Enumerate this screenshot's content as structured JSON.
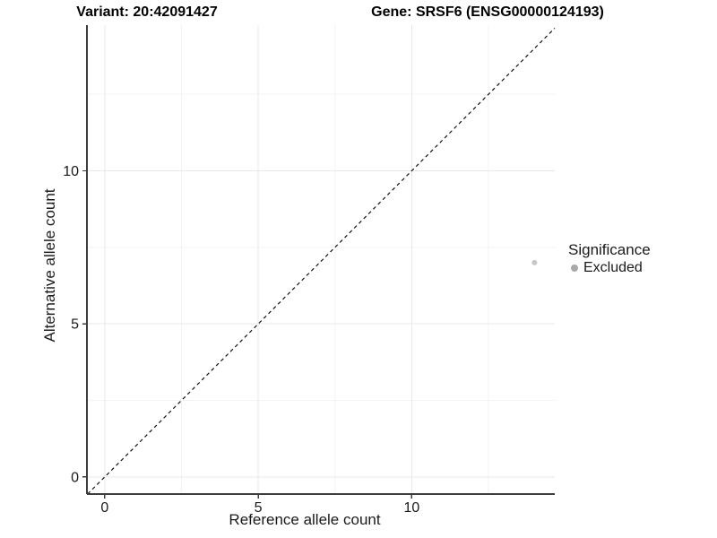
{
  "titles": {
    "variant": "Variant: 20:42091427",
    "gene": "Gene: SRSF6 (ENSG00000124193)"
  },
  "chart_data": {
    "type": "scatter",
    "xlabel": "Reference allele count",
    "ylabel": "Alternative allele count",
    "xlim": [
      -0.58,
      14.66
    ],
    "ylim": [
      -0.56,
      14.76
    ],
    "x_major_ticks": [
      0,
      5,
      10
    ],
    "y_major_ticks": [
      0,
      5,
      10
    ],
    "x_minor_ticks": [
      2.5,
      7.5,
      12.5
    ],
    "y_minor_ticks": [
      2.5,
      7.5,
      12.5
    ],
    "grid": "major and minor gridlines shown",
    "series": [
      {
        "name": "Excluded",
        "color": "#c7c7c7",
        "points": [
          {
            "x": 14,
            "y": 7
          }
        ]
      }
    ],
    "reference_line": {
      "kind": "identity y=x",
      "style": "dashed",
      "color": "#111111"
    },
    "legend": {
      "title": "Significance",
      "position": "right",
      "entries": [
        {
          "label": "Excluded",
          "color": "#a9a9a9"
        }
      ]
    },
    "colors": {
      "axis_line": "#3d3d3d",
      "tick": "#3d3d3d",
      "tick_label": "#1a1a1a",
      "grid_major": "#e8e8e8",
      "grid_minor": "#f3f3f3",
      "panel_background": "#ffffff"
    }
  }
}
